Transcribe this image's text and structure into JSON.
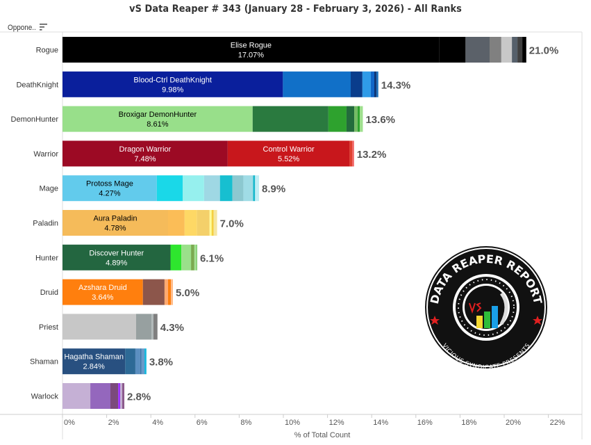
{
  "title": "vS Data Reaper # 343 (January 28 - February 3, 2026) - All Ranks",
  "column_header": "Oppone..",
  "chart_data": {
    "type": "bar",
    "orientation": "horizontal",
    "stacked": true,
    "title": "vS Data Reaper # 343 (January 28 - February 3, 2026) - All Ranks",
    "xlabel": "% of Total Count",
    "ylabel": "Oppone..",
    "xlim": [
      0,
      22.5
    ],
    "xticks": [
      "0%",
      "2%",
      "4%",
      "6%",
      "8%",
      "10%",
      "12%",
      "14%",
      "16%",
      "18%",
      "20%",
      "22%"
    ],
    "grid": false,
    "categories": [
      "Rogue",
      "DeathKnight",
      "DemonHunter",
      "Warrior",
      "Mage",
      "Paladin",
      "Hunter",
      "Druid",
      "Priest",
      "Shaman",
      "Warlock"
    ],
    "totals": [
      "21.0%",
      "14.3%",
      "13.6%",
      "13.2%",
      "8.9%",
      "7.0%",
      "6.1%",
      "5.0%",
      "4.3%",
      "3.8%",
      "2.8%"
    ],
    "bars": [
      {
        "class": "Rogue",
        "segments": [
          {
            "label": "Elise Rogue",
            "value": 17.07,
            "value_label": "17.07%",
            "color": "#000000",
            "text": "#ffffff"
          },
          {
            "value": 1.18,
            "color": "#000000"
          },
          {
            "value": 1.09,
            "color": "#5b6169"
          },
          {
            "value": 0.53,
            "color": "#808080"
          },
          {
            "value": 0.48,
            "color": "#c8c8c8"
          },
          {
            "value": 0.25,
            "color": "#56606b"
          },
          {
            "value": 0.22,
            "color": "#404040"
          },
          {
            "value": 0.18,
            "color": "#000000"
          }
        ]
      },
      {
        "class": "DeathKnight",
        "segments": [
          {
            "label": "Blood-Ctrl DeathKnight",
            "value": 9.98,
            "value_label": "9.98%",
            "color": "#0a1f9c",
            "text": "#ffffff"
          },
          {
            "value": 3.07,
            "color": "#1170c8"
          },
          {
            "value": 0.53,
            "color": "#0a3d8c"
          },
          {
            "value": 0.38,
            "color": "#2f9be8"
          },
          {
            "value": 0.16,
            "color": "#1166c8"
          },
          {
            "value": 0.09,
            "color": "#0a3070"
          },
          {
            "value": 0.09,
            "color": "#1f6fb8"
          }
        ]
      },
      {
        "class": "DemonHunter",
        "segments": [
          {
            "label": "Broxigar DemonHunter",
            "value": 8.61,
            "value_label": "8.61%",
            "color": "#98df8a",
            "text": "#000000"
          },
          {
            "value": 3.43,
            "color": "#2a7a3f"
          },
          {
            "value": 0.82,
            "color": "#2ea22e"
          },
          {
            "value": 0.35,
            "color": "#236b3c"
          },
          {
            "value": 0.15,
            "color": "#74bb64"
          },
          {
            "value": 0.1,
            "color": "#2ea22e"
          },
          {
            "value": 0.14,
            "color": "#9fe08e"
          }
        ]
      },
      {
        "class": "Warrior",
        "segments": [
          {
            "label": "Dragon Warrior",
            "value": 7.48,
            "value_label": "7.48%",
            "color": "#9c0a24",
            "text": "#ffffff"
          },
          {
            "label": "Control Warrior",
            "value": 5.52,
            "value_label": "5.52%",
            "color": "#c8171c",
            "text": "#ffffff"
          },
          {
            "value": 0.12,
            "color": "#e0402f"
          },
          {
            "value": 0.08,
            "color": "#f06060"
          }
        ]
      },
      {
        "class": "Mage",
        "segments": [
          {
            "label": "Protoss Mage",
            "value": 4.27,
            "value_label": "4.27%",
            "color": "#62cbec",
            "text": "#000000"
          },
          {
            "value": 1.17,
            "color": "#1ad8e8"
          },
          {
            "value": 0.97,
            "color": "#96f0ee"
          },
          {
            "value": 0.72,
            "color": "#9fd8e4"
          },
          {
            "value": 0.56,
            "color": "#17bfd0"
          },
          {
            "value": 0.5,
            "color": "#8cc8d0"
          },
          {
            "value": 0.44,
            "color": "#a0dce6"
          },
          {
            "value": 0.09,
            "color": "#17b8cc"
          },
          {
            "value": 0.18,
            "color": "#c0eef5"
          }
        ]
      },
      {
        "class": "Paladin",
        "segments": [
          {
            "label": "Aura Paladin",
            "value": 4.78,
            "value_label": "4.78%",
            "color": "#f5bb5a",
            "text": "#000000"
          },
          {
            "value": 0.75,
            "color": "#fbbd57"
          },
          {
            "value": 0.56,
            "color": "#fed865"
          },
          {
            "value": 0.57,
            "color": "#f4d06a"
          },
          {
            "value": 0.09,
            "color": "#ffff99"
          },
          {
            "value": 0.09,
            "color": "#f5d040"
          },
          {
            "value": 0.16,
            "color": "#f5e6a0"
          }
        ]
      },
      {
        "class": "Hunter",
        "segments": [
          {
            "label": "Discover Hunter",
            "value": 4.89,
            "value_label": "4.89%",
            "color": "#236640",
            "text": "#ffffff"
          },
          {
            "value": 0.49,
            "color": "#2ee62e"
          },
          {
            "value": 0.44,
            "color": "#9ae08a"
          },
          {
            "value": 0.15,
            "color": "#7aaa50"
          },
          {
            "value": 0.1,
            "color": "#a0e090"
          },
          {
            "value": 0.03,
            "color": "#70c060"
          }
        ]
      },
      {
        "class": "Druid",
        "segments": [
          {
            "label": "Azshara Druid",
            "value": 3.64,
            "value_label": "3.64%",
            "color": "#ff7f0e",
            "text": "#ffffff"
          },
          {
            "value": 0.98,
            "color": "#8c564b"
          },
          {
            "value": 0.16,
            "color": "#ffaa70"
          },
          {
            "value": 0.13,
            "color": "#ff7f0e"
          },
          {
            "value": 0.09,
            "color": "#ffbb88"
          }
        ]
      },
      {
        "class": "Priest",
        "segments": [
          {
            "value": 3.33,
            "color": "#c7c7c7"
          },
          {
            "value": 0.7,
            "color": "#97a0a0"
          },
          {
            "value": 0.09,
            "color": "#b0b8b8"
          },
          {
            "value": 0.18,
            "color": "#7f7f7f"
          }
        ]
      },
      {
        "class": "Shaman",
        "segments": [
          {
            "label": "Hagatha Shaman",
            "value": 2.84,
            "value_label": "2.84%",
            "color": "#285080",
            "text": "#ffffff"
          },
          {
            "value": 0.46,
            "color": "#2d6a96"
          },
          {
            "value": 0.22,
            "color": "#5b8fc0"
          },
          {
            "value": 0.06,
            "color": "#3e78aa"
          },
          {
            "value": 0.13,
            "color": "#6a9ac8"
          },
          {
            "value": 0.09,
            "color": "#17b8dc"
          }
        ]
      },
      {
        "class": "Warlock",
        "segments": [
          {
            "value": 1.26,
            "color": "#c5b0d5"
          },
          {
            "value": 0.91,
            "color": "#9467bd"
          },
          {
            "value": 0.35,
            "color": "#7b4a7b"
          },
          {
            "value": 0.09,
            "color": "#9b30ff"
          },
          {
            "value": 0.09,
            "color": "#c5b0d5"
          },
          {
            "value": 0.1,
            "color": "#8c5a8c"
          }
        ]
      }
    ]
  },
  "logo": {
    "text_top": "DATA REAPER REPORT",
    "text_bottom": "VICIOUS SYNDICATE PRESENTS"
  }
}
